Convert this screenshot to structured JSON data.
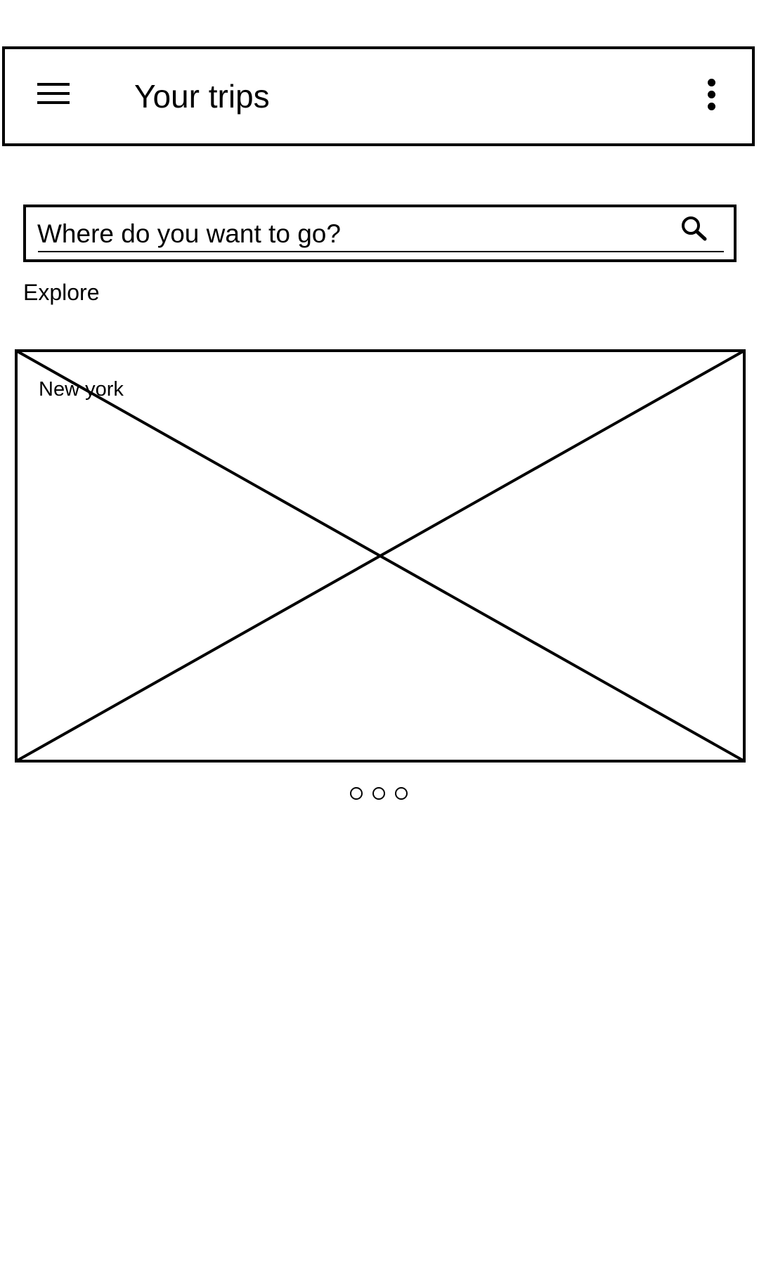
{
  "app_bar": {
    "title": "Your trips",
    "menu_icon": "hamburger-menu-icon",
    "overflow_icon": "more-vertical-icon"
  },
  "search": {
    "placeholder": "Where do you want to go?",
    "value": "",
    "icon": "search-icon"
  },
  "explore": {
    "title": "Explore",
    "cards": [
      {
        "label": "New york",
        "image": "image-placeholder"
      }
    ],
    "page_count": 3
  }
}
